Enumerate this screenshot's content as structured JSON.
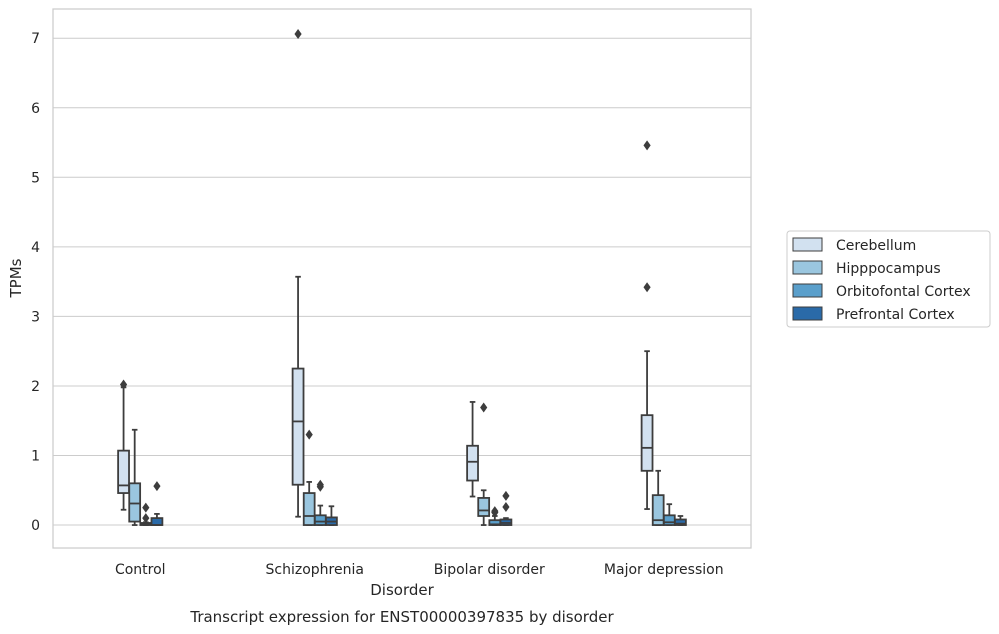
{
  "chart_data": {
    "type": "box",
    "title": "",
    "caption": "Transcript expression for ENST00000397835 by disorder",
    "xlabel": "Disorder",
    "ylabel": "TPMs",
    "ylim": [
      -0.33,
      7.42
    ],
    "yticks": [
      0,
      1,
      2,
      3,
      4,
      5,
      6,
      7
    ],
    "grid": "horizontal",
    "legend_position": "right",
    "categories": [
      "Control",
      "Schizophrenia",
      "Bipolar disorder",
      "Major depression"
    ],
    "series": [
      {
        "name": "Cerebellum",
        "color": "#d2e1f0",
        "boxes": [
          {
            "whisker_low": 0.22,
            "q1": 0.46,
            "median": 0.57,
            "q3": 1.07,
            "whisker_high": 1.98,
            "outliers": [
              2.02
            ]
          },
          {
            "whisker_low": 0.12,
            "q1": 0.58,
            "median": 1.49,
            "q3": 2.25,
            "whisker_high": 3.57,
            "outliers": [
              7.06
            ]
          },
          {
            "whisker_low": 0.41,
            "q1": 0.64,
            "median": 0.91,
            "q3": 1.14,
            "whisker_high": 1.77,
            "outliers": []
          },
          {
            "whisker_low": 0.23,
            "q1": 0.78,
            "median": 1.11,
            "q3": 1.58,
            "whisker_high": 2.5,
            "outliers": [
              3.42,
              5.46
            ]
          }
        ]
      },
      {
        "name": "Hipppocampus",
        "color": "#9ac6df",
        "boxes": [
          {
            "whisker_low": 0.0,
            "q1": 0.05,
            "median": 0.31,
            "q3": 0.6,
            "whisker_high": 1.37,
            "outliers": []
          },
          {
            "whisker_low": 0.0,
            "q1": 0.0,
            "median": 0.13,
            "q3": 0.46,
            "whisker_high": 0.62,
            "outliers": [
              1.3
            ]
          },
          {
            "whisker_low": 0.0,
            "q1": 0.13,
            "median": 0.21,
            "q3": 0.39,
            "whisker_high": 0.5,
            "outliers": [
              1.69
            ]
          },
          {
            "whisker_low": 0.0,
            "q1": 0.0,
            "median": 0.07,
            "q3": 0.43,
            "whisker_high": 0.78,
            "outliers": []
          }
        ]
      },
      {
        "name": "Orbitofontal Cortex",
        "color": "#5a9fcb",
        "boxes": [
          {
            "whisker_low": 0.0,
            "q1": 0.0,
            "median": 0.01,
            "q3": 0.03,
            "whisker_high": 0.04,
            "outliers": [
              0.1,
              0.25
            ]
          },
          {
            "whisker_low": 0.0,
            "q1": 0.0,
            "median": 0.05,
            "q3": 0.14,
            "whisker_high": 0.28,
            "outliers": [
              0.55,
              0.58
            ]
          },
          {
            "whisker_low": 0.0,
            "q1": 0.0,
            "median": 0.01,
            "q3": 0.07,
            "whisker_high": 0.13,
            "outliers": [
              0.18,
              0.2
            ]
          },
          {
            "whisker_low": 0.0,
            "q1": 0.0,
            "median": 0.04,
            "q3": 0.14,
            "whisker_high": 0.3,
            "outliers": []
          }
        ]
      },
      {
        "name": "Prefrontal Cortex",
        "color": "#2a6aa8",
        "boxes": [
          {
            "whisker_low": 0.0,
            "q1": 0.0,
            "median": 0.0,
            "q3": 0.1,
            "whisker_high": 0.16,
            "outliers": [
              0.56
            ]
          },
          {
            "whisker_low": 0.0,
            "q1": 0.0,
            "median": 0.05,
            "q3": 0.11,
            "whisker_high": 0.27,
            "outliers": []
          },
          {
            "whisker_low": 0.0,
            "q1": 0.0,
            "median": 0.03,
            "q3": 0.08,
            "whisker_high": 0.1,
            "outliers": [
              0.26,
              0.42
            ]
          },
          {
            "whisker_low": 0.0,
            "q1": 0.0,
            "median": 0.02,
            "q3": 0.08,
            "whisker_high": 0.13,
            "outliers": []
          }
        ]
      }
    ]
  }
}
